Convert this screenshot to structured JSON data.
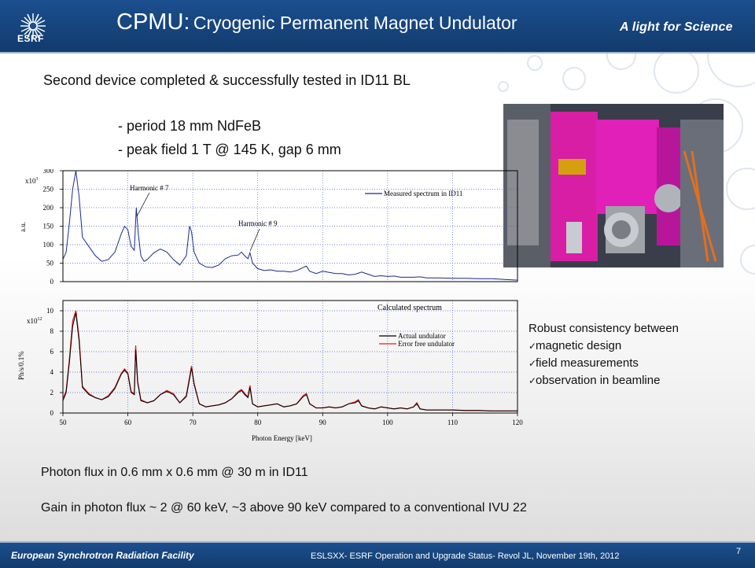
{
  "header": {
    "logo_text": "ESRF",
    "title_main": "CPMU:",
    "title_sub": "Cryogenic Permanent Magnet Undulator",
    "tagline": "A light for Science"
  },
  "body": {
    "line1": "Second device completed & successfully tested in ID11 BL",
    "bullets": [
      "- period 18 mm NdFeB",
      "- peak field 1 T @ 145 K, gap 6 mm"
    ],
    "robust_title": "Robust consistency between",
    "robust_items": [
      "magnetic design",
      "field measurements",
      "observation in beamline"
    ],
    "flux": "Photon flux in 0.6 mm x 0.6 mm @ 30 m in ID11",
    "gain": "Gain in photon flux ~ 2 @ 60 keV,  ~3 above 90 keV compared to a conventional IVU 22"
  },
  "chart_data": [
    {
      "type": "line",
      "ylabel": "a.u.",
      "y_multiplier": "x10",
      "y_multiplier_exp": "3",
      "y_ticks": [
        "0",
        "50",
        "100",
        "150",
        "200",
        "250",
        "300"
      ],
      "xlim": [
        50,
        120
      ],
      "ylim": [
        0,
        300
      ],
      "grid": true,
      "legend": "top-right",
      "series": [
        {
          "name": "Measured spectrum in ID11",
          "color": "#1a2a8c",
          "x": [
            50,
            50.5,
            51,
            51.5,
            52,
            52.5,
            53,
            54,
            55,
            56,
            57,
            58,
            59,
            59.5,
            60,
            60.5,
            61,
            61.3,
            61.6,
            62,
            62.5,
            63,
            64,
            65,
            66,
            67,
            68,
            69,
            69.5,
            69.8,
            70.2,
            71,
            72,
            73,
            74,
            75,
            76,
            77,
            77.5,
            78,
            78.5,
            78.8,
            79.2,
            80,
            81,
            82,
            83,
            84,
            85,
            86,
            87,
            87.5,
            88,
            89,
            90,
            91,
            92,
            93,
            94,
            95,
            96,
            97,
            98,
            99,
            100,
            101,
            102,
            103,
            104,
            105,
            106,
            108,
            110,
            112,
            114,
            116,
            118,
            120
          ],
          "y": [
            60,
            80,
            160,
            250,
            300,
            230,
            120,
            95,
            70,
            55,
            60,
            80,
            130,
            150,
            140,
            95,
            85,
            200,
            130,
            70,
            55,
            60,
            78,
            88,
            80,
            60,
            45,
            70,
            150,
            135,
            80,
            50,
            40,
            38,
            45,
            62,
            70,
            72,
            80,
            70,
            62,
            78,
            50,
            35,
            30,
            32,
            28,
            28,
            26,
            30,
            38,
            42,
            28,
            22,
            28,
            25,
            22,
            22,
            18,
            20,
            26,
            20,
            14,
            16,
            14,
            15,
            12,
            12,
            12,
            13,
            10,
            10,
            9,
            9,
            8,
            8,
            6,
            4
          ]
        }
      ],
      "annotations": [
        "Harmonic # 7",
        "Harmonic # 9"
      ]
    },
    {
      "type": "line",
      "title": "Calculated spectrum",
      "ylabel": "Ph/s/0.1%",
      "xlabel": "Photon Energy [keV]",
      "y_multiplier": "x10",
      "y_multiplier_exp": "12",
      "x_ticks": [
        "50",
        "60",
        "70",
        "80",
        "90",
        "100",
        "110",
        "120"
      ],
      "y_ticks": [
        "0",
        "2",
        "4",
        "6",
        "8",
        "10"
      ],
      "xlim": [
        50,
        120
      ],
      "ylim": [
        0,
        11
      ],
      "grid": true,
      "legend": "top-right",
      "series": [
        {
          "name": "Actual undulator",
          "color": "#000000",
          "x": [
            50,
            50.5,
            51,
            51.5,
            52,
            52.5,
            53,
            54,
            55,
            56,
            57,
            58,
            59,
            59.5,
            60,
            60.5,
            61,
            61.2,
            61.5,
            62,
            63,
            64,
            65,
            66,
            67,
            68,
            69,
            69.5,
            69.8,
            70.2,
            71,
            72,
            73,
            74,
            75,
            76,
            77,
            77.5,
            78,
            78.5,
            78.8,
            79.2,
            80,
            81,
            82,
            83,
            84,
            85,
            86,
            87,
            87.5,
            88,
            89,
            90,
            91,
            92,
            93,
            94,
            95,
            95.5,
            96,
            97,
            98,
            99,
            100,
            101,
            102,
            103,
            104,
            104.5,
            105,
            106,
            108,
            110,
            112,
            114,
            116,
            118,
            120
          ],
          "y": [
            1.2,
            2.0,
            5.0,
            8.5,
            9.8,
            7.0,
            2.5,
            1.8,
            1.5,
            1.3,
            1.6,
            2.4,
            3.8,
            4.2,
            3.8,
            2.0,
            1.8,
            6.2,
            3.0,
            1.2,
            1.0,
            1.2,
            1.8,
            2.1,
            1.8,
            1.0,
            1.6,
            3.3,
            4.4,
            2.8,
            0.9,
            0.6,
            0.7,
            0.8,
            1.0,
            1.4,
            2.0,
            2.2,
            1.8,
            1.5,
            2.5,
            0.9,
            0.6,
            0.7,
            0.8,
            0.9,
            0.6,
            0.7,
            0.9,
            1.6,
            1.8,
            0.9,
            0.5,
            0.5,
            0.6,
            0.5,
            0.6,
            0.9,
            1.0,
            1.2,
            0.7,
            0.5,
            0.4,
            0.6,
            0.5,
            0.4,
            0.5,
            0.4,
            0.6,
            0.9,
            0.4,
            0.3,
            0.3,
            0.3,
            0.25,
            0.25,
            0.2,
            0.2,
            0.2
          ]
        },
        {
          "name": "Error free undulator",
          "color": "#e02020",
          "x": [
            50,
            50.5,
            51,
            51.5,
            52,
            52.5,
            53,
            54,
            55,
            56,
            57,
            58,
            59,
            59.5,
            60,
            60.5,
            61,
            61.2,
            61.5,
            62,
            63,
            64,
            65,
            66,
            67,
            68,
            69,
            69.5,
            69.8,
            70.2,
            71,
            72,
            73,
            74,
            75,
            76,
            77,
            77.5,
            78,
            78.5,
            78.8,
            79.2,
            80,
            81,
            82,
            83,
            84,
            85,
            86,
            87,
            87.5,
            88,
            89,
            90,
            91,
            92,
            93,
            94,
            95,
            95.5,
            96,
            97,
            98,
            99,
            100,
            101,
            102,
            103,
            104,
            104.5,
            105,
            106,
            108,
            110,
            112,
            114,
            116,
            118,
            120
          ],
          "y": [
            1.3,
            2.2,
            5.3,
            9.0,
            10.0,
            7.3,
            2.6,
            1.9,
            1.5,
            1.3,
            1.7,
            2.5,
            3.9,
            4.3,
            3.9,
            2.1,
            1.9,
            6.6,
            3.1,
            1.3,
            1.0,
            1.2,
            1.8,
            2.2,
            1.9,
            1.0,
            1.7,
            3.5,
            4.6,
            2.9,
            0.9,
            0.6,
            0.7,
            0.8,
            1.0,
            1.4,
            2.1,
            2.3,
            1.9,
            1.6,
            2.7,
            0.9,
            0.6,
            0.7,
            0.8,
            0.9,
            0.6,
            0.7,
            0.9,
            1.7,
            1.9,
            0.9,
            0.5,
            0.5,
            0.6,
            0.5,
            0.6,
            0.9,
            1.1,
            1.3,
            0.7,
            0.5,
            0.4,
            0.6,
            0.5,
            0.4,
            0.5,
            0.4,
            0.6,
            1.0,
            0.4,
            0.3,
            0.3,
            0.3,
            0.25,
            0.25,
            0.2,
            0.2,
            0.2
          ]
        }
      ]
    }
  ],
  "footer": {
    "left": "European Synchrotron Radiation Facility",
    "mid": "ESLSXX- ESRF Operation and Upgrade Status- Revol JL, November 19th, 2012",
    "page": "7"
  },
  "colors": {
    "header_bg": "#1b4f8e",
    "accent": "#ffffff"
  }
}
